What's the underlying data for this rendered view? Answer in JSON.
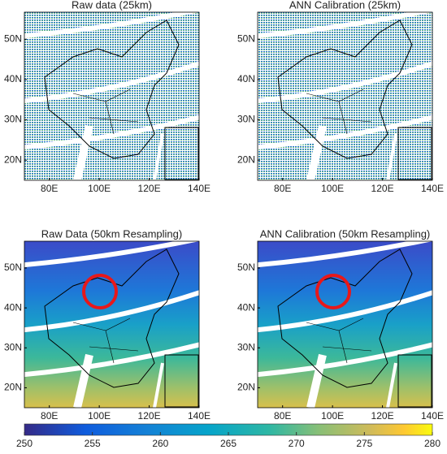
{
  "panels": [
    {
      "title": "Raw data (25km)",
      "xlim": [
        70,
        140
      ],
      "ylim": [
        15,
        56.7
      ],
      "xticks": [
        {
          "value": 80,
          "label": "80E"
        },
        {
          "value": 100,
          "label": "100E"
        },
        {
          "value": 120,
          "label": "120E"
        },
        {
          "value": 140,
          "label": "140E"
        }
      ],
      "yticks": [
        {
          "value": 20,
          "label": "20N"
        },
        {
          "value": 30,
          "label": "30N"
        },
        {
          "value": 40,
          "label": "40N"
        },
        {
          "value": 50,
          "label": "50N"
        }
      ]
    },
    {
      "title": "ANN Calibration (25km)",
      "xlim": [
        70,
        140
      ],
      "ylim": [
        15,
        56.7
      ],
      "xticks": [
        {
          "value": 80,
          "label": "80E"
        },
        {
          "value": 100,
          "label": "100E"
        },
        {
          "value": 120,
          "label": "120E"
        },
        {
          "value": 140,
          "label": "140E"
        }
      ],
      "yticks": [
        {
          "value": 20,
          "label": "20N"
        },
        {
          "value": 30,
          "label": "30N"
        },
        {
          "value": 40,
          "label": "40N"
        },
        {
          "value": 50,
          "label": "50N"
        }
      ]
    },
    {
      "title": "Raw Data (50km Resampling)",
      "xlim": [
        70,
        140
      ],
      "ylim": [
        15,
        56.7
      ],
      "xticks": [
        {
          "value": 80,
          "label": "80E"
        },
        {
          "value": 100,
          "label": "100E"
        },
        {
          "value": 120,
          "label": "120E"
        },
        {
          "value": 140,
          "label": "140E"
        }
      ],
      "yticks": [
        {
          "value": 20,
          "label": "20N"
        },
        {
          "value": 30,
          "label": "30N"
        },
        {
          "value": 40,
          "label": "40N"
        },
        {
          "value": 50,
          "label": "50N"
        }
      ]
    },
    {
      "title": "ANN Calibration (50km Resampling)",
      "xlim": [
        70,
        140
      ],
      "ylim": [
        15,
        56.7
      ],
      "xticks": [
        {
          "value": 80,
          "label": "80E"
        },
        {
          "value": 100,
          "label": "100E"
        },
        {
          "value": 120,
          "label": "120E"
        },
        {
          "value": 140,
          "label": "140E"
        }
      ],
      "yticks": [
        {
          "value": 20,
          "label": "20N"
        },
        {
          "value": 30,
          "label": "30N"
        },
        {
          "value": 40,
          "label": "40N"
        },
        {
          "value": 50,
          "label": "50N"
        }
      ]
    }
  ],
  "colorbar": {
    "lim": [
      250,
      280
    ],
    "ticks": [
      250,
      255,
      260,
      265,
      270,
      275,
      280
    ]
  }
}
